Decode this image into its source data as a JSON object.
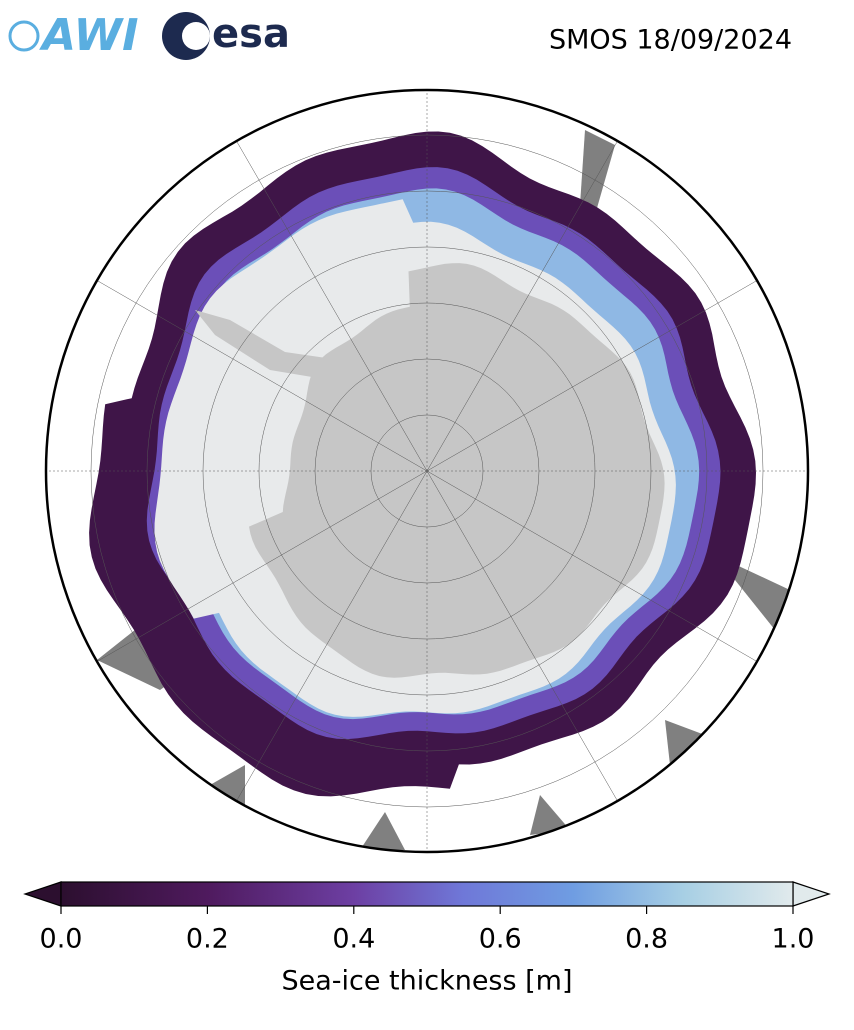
{
  "header": {
    "logos": [
      "AWI",
      "esa"
    ],
    "title": "SMOS 18/09/2024"
  },
  "colorbar": {
    "label": "Sea-ice thickness [m]",
    "lim": [
      0,
      1
    ],
    "ticks": [
      {
        "value": 0,
        "label": "0.0"
      },
      0.2,
      0.4,
      0.6,
      0.8,
      {
        "value": 1,
        "label": "1.0"
      }
    ]
  }
}
